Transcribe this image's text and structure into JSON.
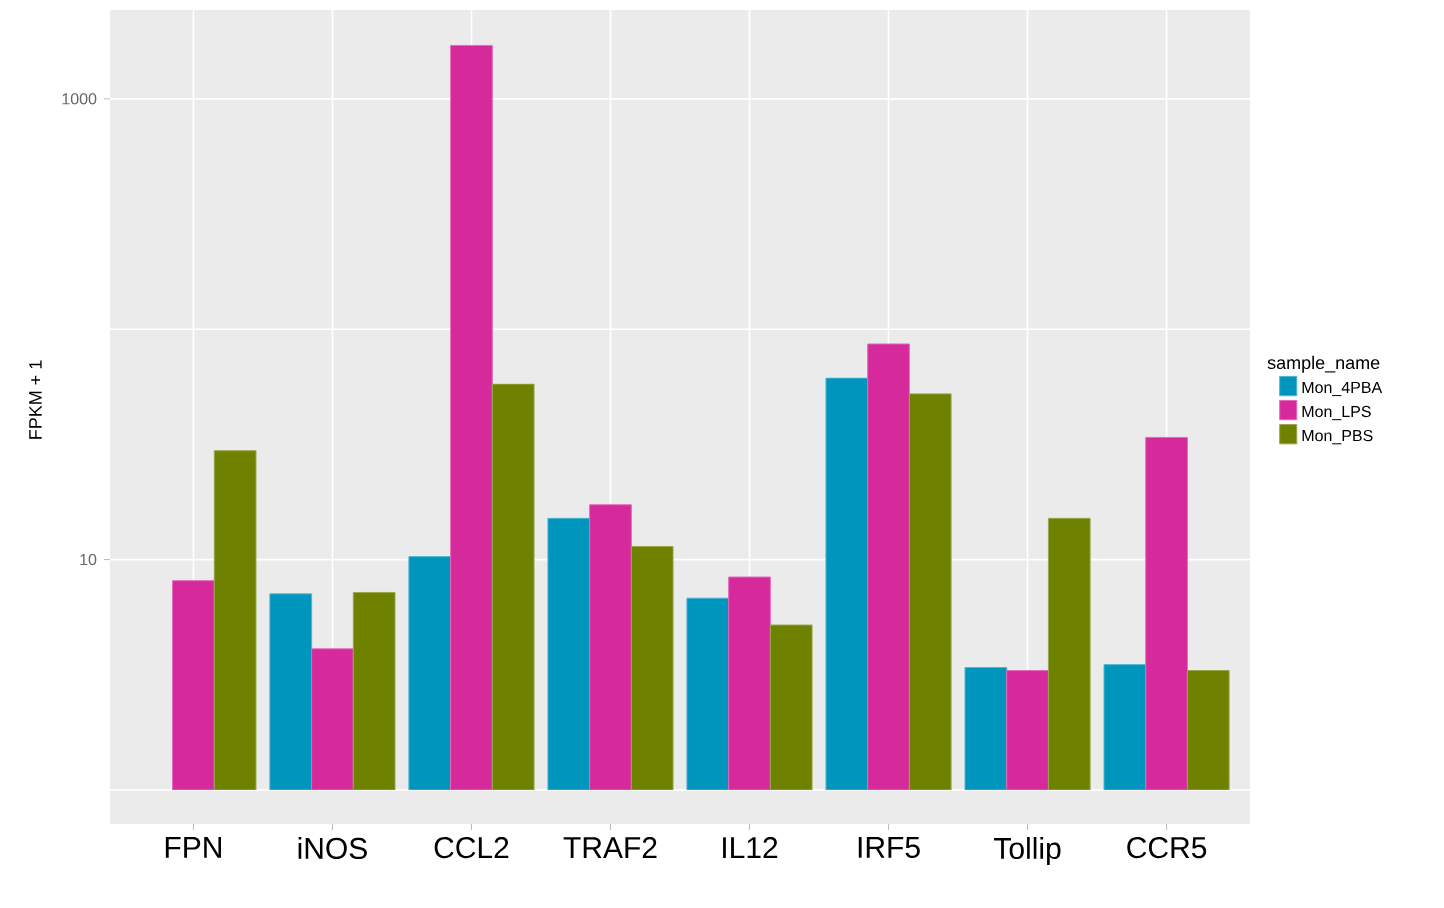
{
  "chart_data": {
    "type": "bar",
    "ylabel": "FPKM + 1",
    "legend_title": "sample_name",
    "legend": "right",
    "log": "y",
    "grid": true,
    "categories": [
      "FPN",
      "iNOS",
      "CCL2",
      "TRAF2",
      "IL12",
      "IRF5",
      "Tollip",
      "CCR5"
    ],
    "ylim": [
      1,
      2430
    ],
    "yticks": [
      {
        "value": 1,
        "label": null
      },
      10,
      {
        "value": 100,
        "label": null
      },
      1000
    ],
    "series": [
      {
        "name": "Mon_4PBA",
        "color": "#0095bd",
        "values": [
          null,
          7.1,
          10.3,
          15.1,
          6.8,
          61.4,
          3.4,
          3.5
        ]
      },
      {
        "name": "Mon_LPS",
        "color": "#d62a9c",
        "values": [
          8.1,
          4.1,
          1706,
          17.3,
          8.4,
          86.3,
          3.3,
          33.9
        ]
      },
      {
        "name": "Mon_PBS",
        "color": "#6e8200",
        "values": [
          29.7,
          7.2,
          57.8,
          11.4,
          5.2,
          52.4,
          15.1,
          3.3
        ]
      }
    ]
  }
}
